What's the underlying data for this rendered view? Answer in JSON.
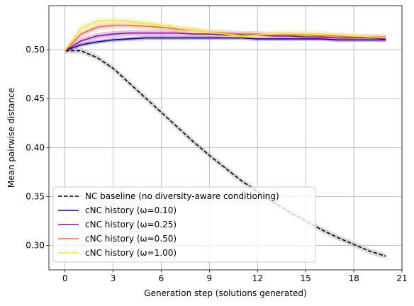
{
  "chart_data": {
    "type": "line",
    "xlabel": "Generation step (solutions generated)",
    "ylabel": "Mean pairwise distance",
    "xlim": [
      -1,
      21
    ],
    "ylim": [
      0.275,
      0.545
    ],
    "xticks": [
      0,
      3,
      6,
      9,
      12,
      15,
      18,
      21
    ],
    "yticks": [
      0.3,
      0.35,
      0.4,
      0.45,
      0.5
    ],
    "grid": true,
    "legend_position": "lower-left",
    "x": [
      0,
      1,
      2,
      3,
      4,
      5,
      6,
      7,
      8,
      9,
      10,
      11,
      12,
      13,
      14,
      15,
      16,
      17,
      18,
      19,
      20
    ],
    "series": [
      {
        "name": "NC baseline (no diversity-aware conditioning)",
        "color": "#000000",
        "dashed": true,
        "band_color": "#bbbbbb",
        "band": 0.003,
        "values": [
          0.499,
          0.499,
          0.492,
          0.481,
          0.466,
          0.451,
          0.436,
          0.421,
          0.406,
          0.392,
          0.379,
          0.366,
          0.355,
          0.344,
          0.334,
          0.325,
          0.316,
          0.308,
          0.301,
          0.294,
          0.289
        ]
      },
      {
        "name": "cNC history (ω=0.10)",
        "color": "#0d0887",
        "dashed": false,
        "band_color": "#7d78c6",
        "band": 0.002,
        "values": [
          0.499,
          0.505,
          0.508,
          0.51,
          0.511,
          0.512,
          0.512,
          0.512,
          0.512,
          0.512,
          0.512,
          0.512,
          0.511,
          0.511,
          0.511,
          0.511,
          0.511,
          0.51,
          0.51,
          0.51,
          0.51
        ]
      },
      {
        "name": "cNC history (ω=0.25)",
        "color": "#8a0da3",
        "dashed": false,
        "band_color": "#c890d8",
        "band": 0.003,
        "values": [
          0.499,
          0.509,
          0.514,
          0.516,
          0.517,
          0.517,
          0.517,
          0.517,
          0.516,
          0.516,
          0.515,
          0.515,
          0.515,
          0.514,
          0.514,
          0.513,
          0.513,
          0.512,
          0.512,
          0.512,
          0.511
        ]
      },
      {
        "name": "cNC history (ω=0.50)",
        "color": "#e9685c",
        "dashed": false,
        "band_color": "#f3b3aa",
        "band": 0.003,
        "values": [
          0.499,
          0.516,
          0.523,
          0.525,
          0.525,
          0.524,
          0.523,
          0.521,
          0.52,
          0.518,
          0.517,
          0.516,
          0.516,
          0.515,
          0.515,
          0.515,
          0.514,
          0.514,
          0.513,
          0.513,
          0.513
        ]
      },
      {
        "name": "cNC history (ω=1.00)",
        "color": "#f5e629",
        "dashed": false,
        "band_color": "#f8ef9a",
        "band": 0.003,
        "values": [
          0.499,
          0.522,
          0.529,
          0.53,
          0.529,
          0.527,
          0.525,
          0.522,
          0.52,
          0.518,
          0.516,
          0.514,
          0.515,
          0.516,
          0.517,
          0.516,
          0.516,
          0.515,
          0.514,
          0.513,
          0.512
        ]
      }
    ]
  }
}
